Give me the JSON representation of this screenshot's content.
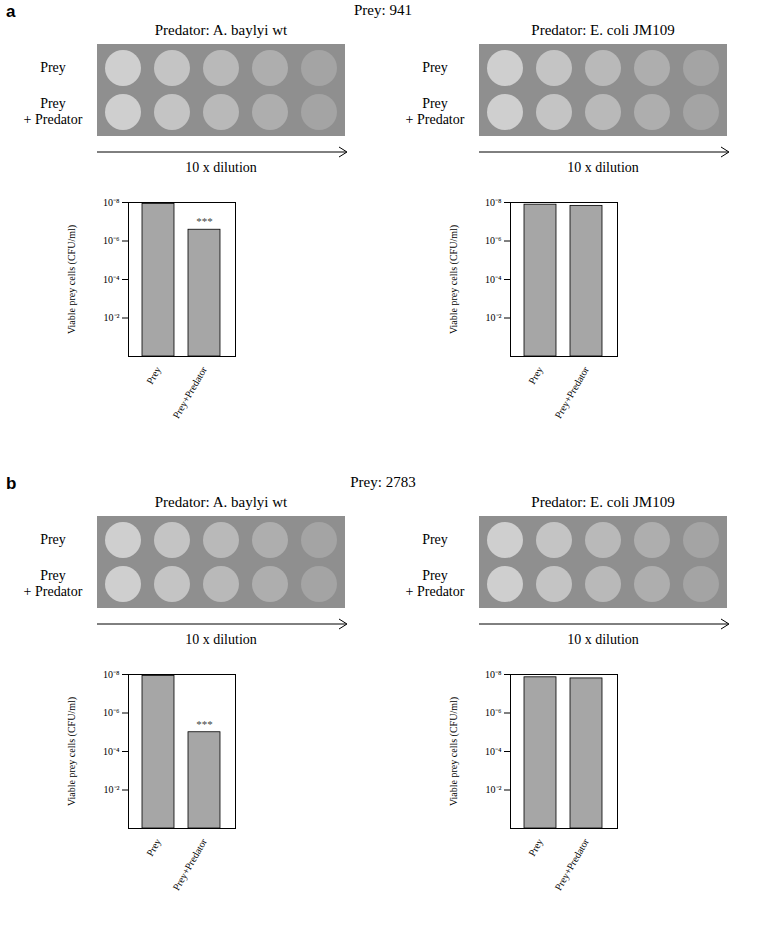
{
  "figure": {
    "dilution_label": "10 x dilution",
    "row_labels": [
      "Prey",
      "Prey\n+ Predator"
    ],
    "panels": [
      {
        "letter": "a",
        "title": "Prey: 941"
      },
      {
        "letter": "b",
        "title": "Prey: 2783"
      }
    ]
  },
  "chart_data": [
    {
      "type": "bar",
      "title": "Predator: A. baylyi wt",
      "ylabel": "Viable prey cells (CFU/ml)",
      "categories": [
        "Prey",
        "Prey+Predator"
      ],
      "values": [
        1.2e-08,
        2.6e-07
      ],
      "color": "#a6a6a6",
      "log": "y",
      "ylim": [
        1,
        1e-08
      ],
      "yticks": [
        {
          "value": 1e-08,
          "label": "10⁻⁸"
        },
        {
          "value": 1e-06,
          "label": "10⁻⁶"
        },
        {
          "value": 0.0001,
          "label": "10⁻⁴"
        },
        {
          "value": 0.01,
          "label": "10⁻²"
        }
      ],
      "grid": false,
      "annotations": [
        {
          "category": "Prey+Predator",
          "text": "***"
        }
      ]
    },
    {
      "type": "bar",
      "title": "Predator: E. coli JM109",
      "ylabel": "Viable prey cells (CFU/ml)",
      "categories": [
        "Prey",
        "Prey+Predator"
      ],
      "values": [
        1.3e-08,
        1.5e-08
      ],
      "color": "#a6a6a6",
      "log": "y",
      "ylim": [
        1,
        1e-08
      ],
      "yticks": [
        {
          "value": 1e-08,
          "label": "10⁻⁸"
        },
        {
          "value": 1e-06,
          "label": "10⁻⁶"
        },
        {
          "value": 0.0001,
          "label": "10⁻⁴"
        },
        {
          "value": 0.01,
          "label": "10⁻²"
        }
      ],
      "grid": false
    },
    {
      "type": "bar",
      "title": "Predator: A. baylyi wt",
      "ylabel": "Viable prey cells (CFU/ml)",
      "categories": [
        "Prey",
        "Prey+Predator"
      ],
      "values": [
        1.2e-08,
        1e-05
      ],
      "color": "#a6a6a6",
      "log": "y",
      "ylim": [
        1,
        1e-08
      ],
      "yticks": [
        {
          "value": 1e-08,
          "label": "10⁻⁸"
        },
        {
          "value": 1e-06,
          "label": "10⁻⁶"
        },
        {
          "value": 0.0001,
          "label": "10⁻⁴"
        },
        {
          "value": 0.01,
          "label": "10⁻²"
        }
      ],
      "grid": false,
      "annotations": [
        {
          "category": "Prey+Predator",
          "text": "***"
        }
      ]
    },
    {
      "type": "bar",
      "title": "Predator: E. coli JM109",
      "ylabel": "Viable prey cells (CFU/ml)",
      "categories": [
        "Prey",
        "Prey+Predator"
      ],
      "values": [
        1.4e-08,
        1.6e-08
      ],
      "color": "#a6a6a6",
      "log": "y",
      "ylim": [
        1,
        1e-08
      ],
      "yticks": [
        {
          "value": 1e-08,
          "label": "10⁻⁸"
        },
        {
          "value": 1e-06,
          "label": "10⁻⁶"
        },
        {
          "value": 0.0001,
          "label": "10⁻⁴"
        },
        {
          "value": 0.01,
          "label": "10⁻²"
        }
      ],
      "grid": false
    }
  ]
}
